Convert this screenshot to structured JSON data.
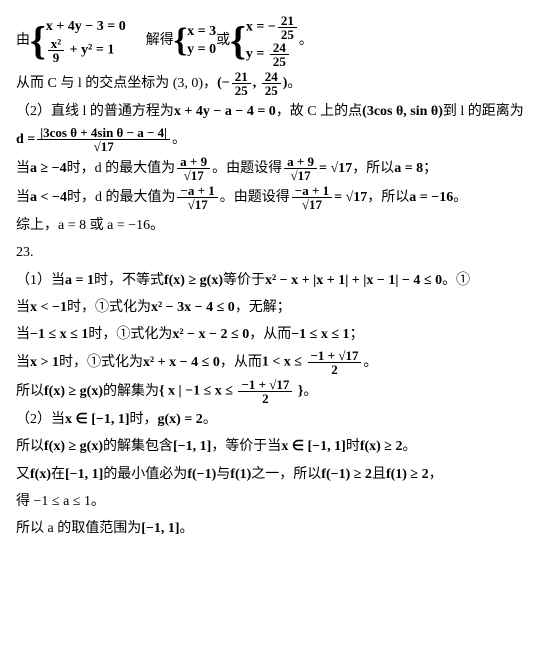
{
  "block1": {
    "prefix": "由",
    "sys1_row1": "x + 4y − 3 = 0",
    "sys1_row2a_num": "x²",
    "sys1_row2a_den": "9",
    "sys1_row2b": " + y² = 1",
    "solve": "解得",
    "sys2_row1": "x = 3",
    "sys2_row2": "y = 0",
    "or": "或",
    "sys3_row1a": "x = −",
    "sys3_row1_num": "21",
    "sys3_row1_den": "25",
    "sys3_row2a": "y = ",
    "sys3_row2_num": "24",
    "sys3_row2_den": "25",
    "period": "。"
  },
  "line2": {
    "a": "从而 C 与 l 的交点坐标为 (3, 0)，",
    "b_pre": "(−",
    "b_n1": "21",
    "b_d1": "25",
    "b_mid": ", ",
    "b_n2": "24",
    "b_d2": "25",
    "b_post": ")",
    "end": "。"
  },
  "line3": {
    "a": "（2）直线 l 的普通方程为 ",
    "b": "x + 4y − a − 4 = 0",
    "c": "，故 C 上的点 ",
    "d": "(3cos θ, sin θ)",
    "e": " 到 l 的距离为"
  },
  "line4": {
    "lhs": "d = ",
    "num": "|3cos θ + 4sin θ − a − 4|",
    "den": "√17",
    "end": "。"
  },
  "line5": {
    "a": "当 ",
    "b": "a ≥ −4",
    "c": " 时，d 的最大值为 ",
    "n1": "a + 9",
    "d1": "√17",
    "d_": "。由题设得 ",
    "n2": "a + 9",
    "d2": "√17",
    "e": " = √17",
    "f": "，所以 ",
    "g": "a = 8",
    "h": "；"
  },
  "line6": {
    "a": "当 ",
    "b": "a < −4",
    "c": " 时，d 的最大值为 ",
    "n1": "−a + 1",
    "d1": "√17",
    "d_": "。由题设得 ",
    "n2": "−a + 1",
    "d2": "√17",
    "e": " = √17",
    "f": "，所以 ",
    "g": "a = −16",
    "h": "。"
  },
  "line7": "综上，a = 8 或 a = −16。",
  "line8": "23.",
  "line9": {
    "a": "（1）当 ",
    "b": "a = 1",
    "c": " 时，不等式 ",
    "d": "f(x) ≥ g(x)",
    "e": " 等价于 ",
    "f": "x² − x + |x + 1| + |x − 1| − 4 ≤ 0",
    "g": "。①"
  },
  "line10": {
    "a": "当 ",
    "b": "x < −1",
    "c": " 时，①式化为 ",
    "d": "x² − 3x − 4 ≤ 0",
    "e": "，无解；"
  },
  "line11": {
    "a": "当 ",
    "b": "−1 ≤ x ≤ 1",
    "c": " 时，①式化为 ",
    "d": "x² − x − 2 ≤ 0",
    "e": "，从而 ",
    "f": "−1 ≤ x ≤ 1",
    "g": "；"
  },
  "line12": {
    "a": "当 ",
    "b": "x > 1",
    "c": " 时，①式化为 ",
    "d": "x² + x − 4 ≤ 0",
    "e": "，从而 ",
    "f_pre": "1 < x ≤ ",
    "f_num": "−1 + √17",
    "f_den": "2",
    "g": "。"
  },
  "line13": {
    "a": "所以 ",
    "b": "f(x) ≥ g(x)",
    "c": " 的解集为 ",
    "d_pre": "{ x | −1 ≤ x ≤ ",
    "d_num": "−1 + √17",
    "d_den": "2",
    "d_post": " }",
    "e": "。"
  },
  "line14": {
    "a": "（2）当 ",
    "b": "x ∈ [−1, 1]",
    "c": " 时，",
    "d": "g(x) = 2",
    "e": "。"
  },
  "line15": {
    "a": "所以 ",
    "b": "f(x) ≥ g(x)",
    "c": " 的解集包含 ",
    "d": "[−1, 1]",
    "e": "，等价于当 ",
    "f": "x ∈ [−1, 1]",
    "g": " 时 ",
    "h": "f(x) ≥ 2",
    "i": "。"
  },
  "line16": {
    "a": "又 ",
    "b": "f(x)",
    "c": " 在 ",
    "d": "[−1, 1]",
    "e": " 的最小值必为 ",
    "f": "f(−1)",
    "g": " 与 ",
    "h": "f(1)",
    "i": " 之一，所以 ",
    "j": "f(−1) ≥ 2",
    "k": " 且 ",
    "l": "f(1) ≥ 2",
    "m": "，"
  },
  "line17": "得 −1 ≤ a ≤ 1。",
  "line18": {
    "a": "所以 a 的取值范围为 ",
    "b": "[−1, 1]",
    "c": "。"
  }
}
